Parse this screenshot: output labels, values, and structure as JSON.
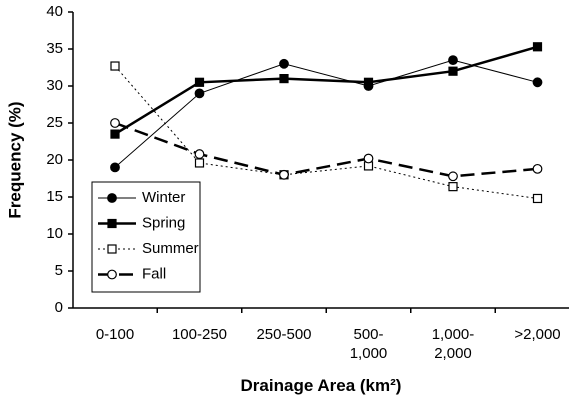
{
  "chart_data": {
    "type": "line",
    "x_label": "Drainage Area (km²)",
    "y_label": "Frequency (%)",
    "categories": [
      "0-100",
      "100-250",
      "250-500",
      "500-\n1,000",
      "1,000-\n2,000",
      ">2,000"
    ],
    "series": [
      {
        "name": "Winter",
        "color": "#000000",
        "marker": "circle",
        "filled": true,
        "dash": "solid",
        "line_width": 1,
        "values": [
          19,
          29,
          33,
          30,
          33.5,
          30.5
        ]
      },
      {
        "name": "Spring",
        "color": "#000000",
        "marker": "square",
        "filled": true,
        "dash": "solid",
        "line_width": 2.5,
        "values": [
          23.5,
          30.5,
          31,
          30.5,
          32,
          35.3
        ]
      },
      {
        "name": "Summer",
        "color": "#000000",
        "marker": "square",
        "filled": false,
        "dash": "dotted",
        "line_width": 1,
        "values": [
          32.7,
          19.6,
          18,
          19.2,
          16.4,
          14.8
        ]
      },
      {
        "name": "Fall",
        "color": "#000000",
        "marker": "circle",
        "filled": false,
        "dash": "dashed",
        "line_width": 2.5,
        "values": [
          25,
          20.8,
          18,
          20.2,
          17.8,
          18.8
        ]
      }
    ],
    "ylim": [
      0,
      40
    ],
    "yticks": [
      0,
      5,
      10,
      15,
      20,
      25,
      30,
      35,
      40
    ],
    "grid": false,
    "legend": "lower left"
  }
}
